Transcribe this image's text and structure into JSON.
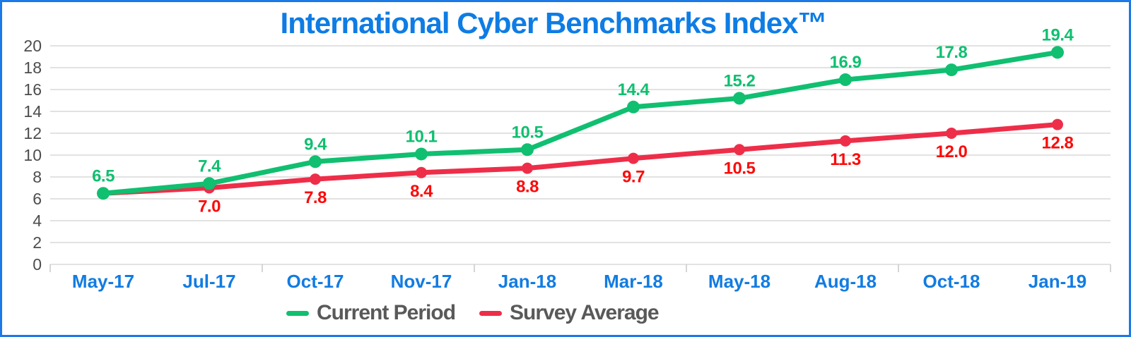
{
  "frame": {
    "border_color": "#1b79e8",
    "background": "#ffffff"
  },
  "chart_data": {
    "type": "line",
    "title": "International Cyber Benchmarks Index™",
    "title_color": "#0e7ce4",
    "categories": [
      "May-17",
      "Jul-17",
      "Oct-17",
      "Nov-17",
      "Jan-18",
      "Mar-18",
      "May-18",
      "Aug-18",
      "Oct-18",
      "Jan-19"
    ],
    "series": [
      {
        "name": "Current Period",
        "color": "#10bf70",
        "values": [
          6.5,
          7.4,
          9.4,
          10.1,
          10.5,
          14.4,
          15.2,
          16.9,
          17.8,
          19.4
        ],
        "data_labels": [
          "6.5",
          "7.4",
          "9.4",
          "10.1",
          "10.5",
          "14.4",
          "15.2",
          "16.9",
          "17.8",
          "19.4"
        ],
        "label_color": "#10bf70",
        "label_side": "above",
        "marker_radius": 9
      },
      {
        "name": "Survey Average",
        "color": "#ee2e49",
        "values": [
          6.5,
          7.0,
          7.8,
          8.4,
          8.8,
          9.7,
          10.5,
          11.3,
          12.0,
          12.8
        ],
        "data_labels": [
          "",
          "7.0",
          "7.8",
          "8.4",
          "8.8",
          "9.7",
          "10.5",
          "11.3",
          "12.0",
          "12.8"
        ],
        "label_color": "#fb0a0a",
        "label_side": "below",
        "marker_radius": 8
      }
    ],
    "ylim": [
      0,
      20
    ],
    "ytick_step": 2,
    "grid": true,
    "legend_position": "bottom",
    "axis": {
      "y_label_color": "#4d4d4d",
      "x_label_color": "#117ce2",
      "gridline_color": "#d9d9d9",
      "tick_color": "#c8c8c8"
    }
  }
}
